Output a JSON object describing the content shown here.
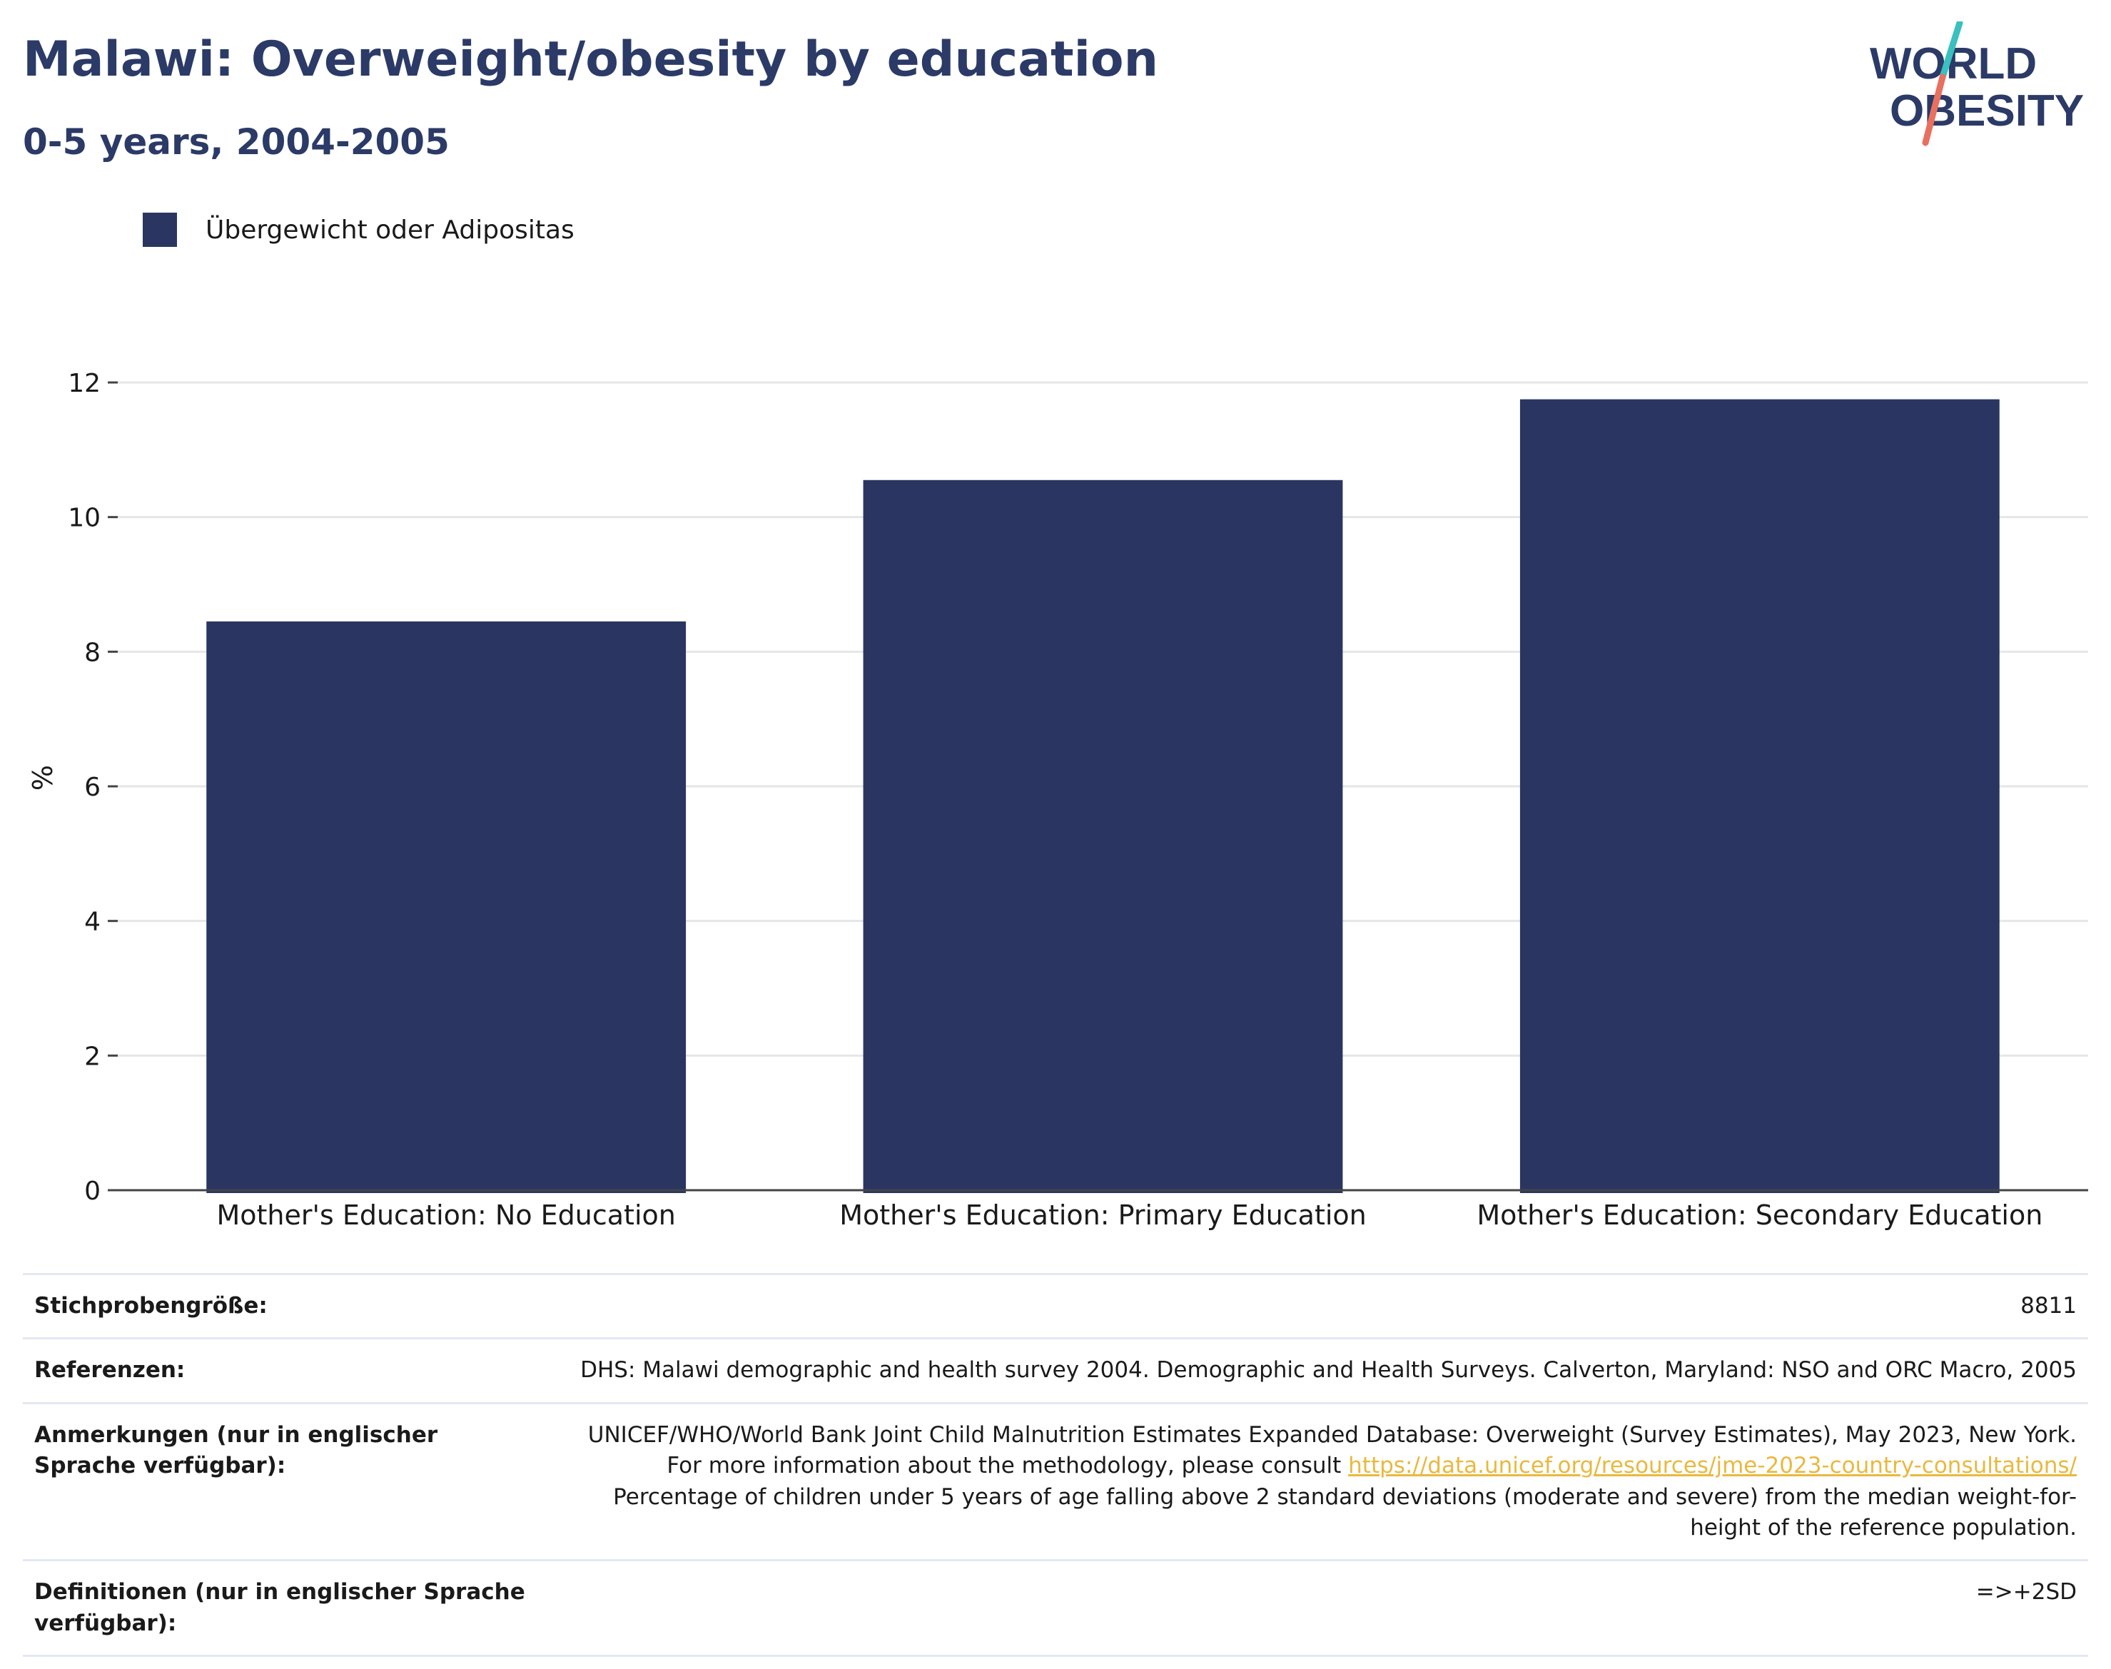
{
  "header": {
    "title": "Malawi: Overweight/obesity by education",
    "subtitle": "0-5 years, 2004-2005"
  },
  "logo": {
    "line1": "WORLD",
    "line2": "OBESITY",
    "colors": {
      "text": "#2b3a67",
      "slash_top": "#3bbfbf",
      "slash_bottom": "#e8705f"
    }
  },
  "colors": {
    "bar": "#2a3661",
    "grid": "#e6e6e6",
    "axis": "#444444",
    "link": "#e9b93f"
  },
  "chart_data": {
    "type": "bar",
    "categories": [
      "Mother's Education: No Education",
      "Mother's Education: Primary Education",
      "Mother's Education: Secondary Education"
    ],
    "series": [
      {
        "name": "Übergewicht oder Adipositas",
        "values": [
          8.45,
          10.55,
          11.75
        ]
      }
    ],
    "ylabel": "%",
    "xlabel": "",
    "ylim": [
      0,
      12
    ],
    "yticks": [
      0,
      2,
      4,
      6,
      8,
      10,
      12
    ],
    "grid": true,
    "legend": "top-left"
  },
  "info_table": [
    {
      "label": "Stichprobengröße:",
      "value": "8811"
    },
    {
      "label": "Referenzen:",
      "value": "DHS: Malawi demographic and health survey 2004. Demographic and Health Surveys. Calverton, Maryland: NSO and ORC Macro, 2005"
    },
    {
      "label": "Anmerkungen (nur in englischer Sprache verfügbar):",
      "value_before": "UNICEF/WHO/World Bank Joint Child Malnutrition Estimates Expanded Database: Overweight (Survey Estimates), May 2023, New York. For more information about the methodology, please consult ",
      "link": "https://data.unicef.org/resources/jme-2023-country-consultations/",
      "value_after": " Percentage of children under 5 years of age falling above 2 standard deviations (moderate and severe) from the median weight-for-height of the reference population."
    },
    {
      "label": "Definitionen (nur in englischer Sprache verfügbar):",
      "value": "=>+2SD"
    }
  ]
}
